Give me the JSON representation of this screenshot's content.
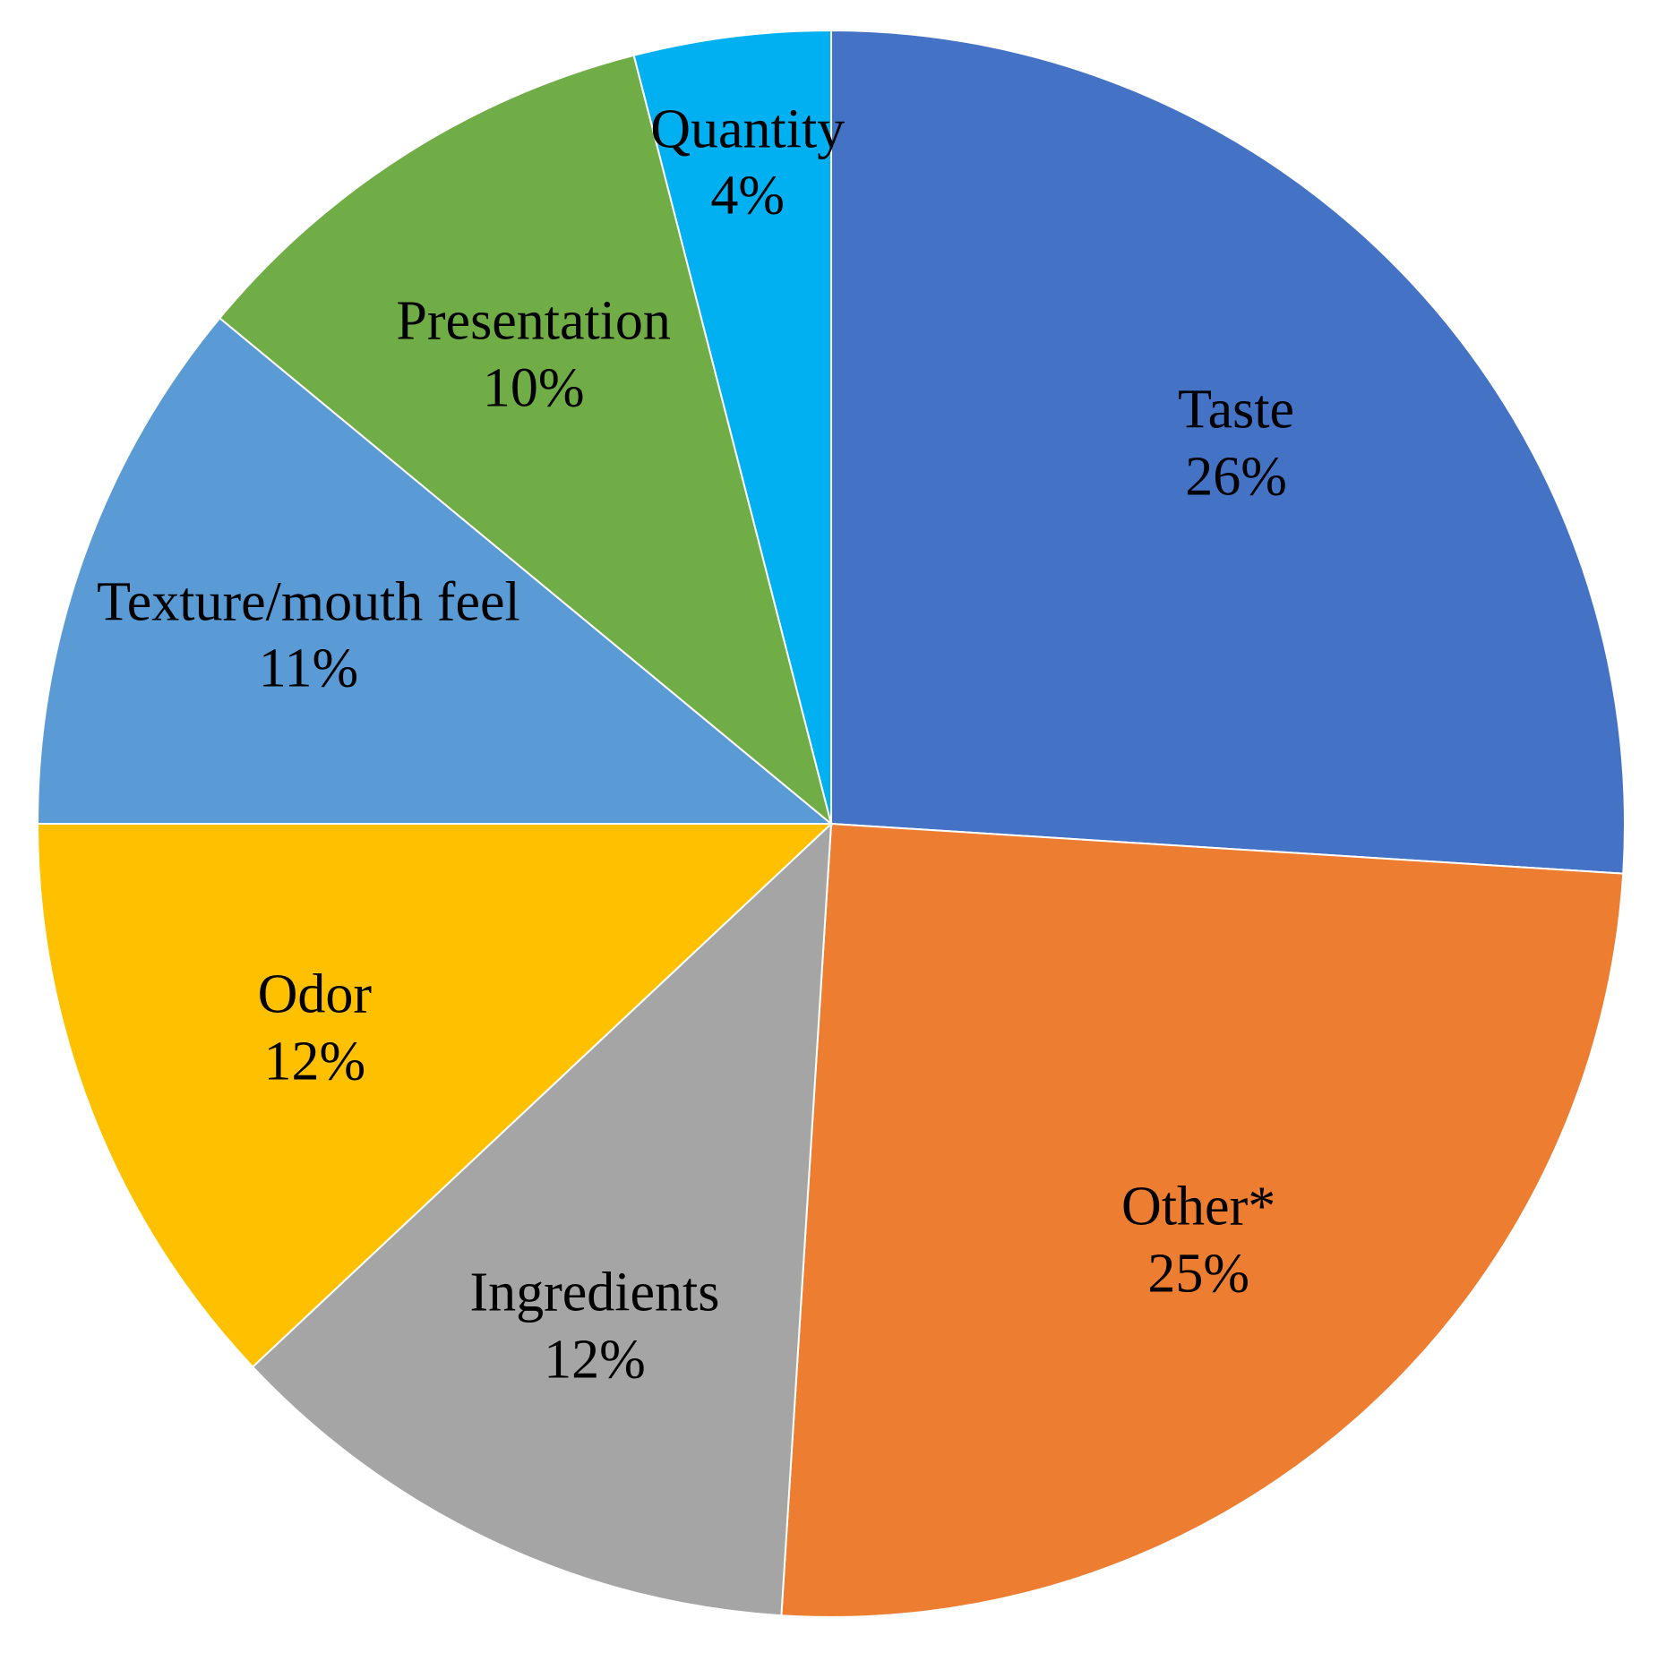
{
  "chart_data": {
    "type": "pie",
    "categories": [
      "Taste",
      "Other*",
      "Ingredients",
      "Odor",
      "Texture/mouth feel",
      "Presentation",
      "Quantity"
    ],
    "values": [
      26,
      25,
      12,
      12,
      11,
      10,
      4
    ],
    "value_labels": [
      "26%",
      "25%",
      "12%",
      "12%",
      "11%",
      "10%",
      "4%"
    ],
    "colors": [
      "#4472c4",
      "#ed7d31",
      "#a5a5a5",
      "#ffc000",
      "#5b9bd5",
      "#70ad47",
      "#00b0f0"
    ]
  }
}
